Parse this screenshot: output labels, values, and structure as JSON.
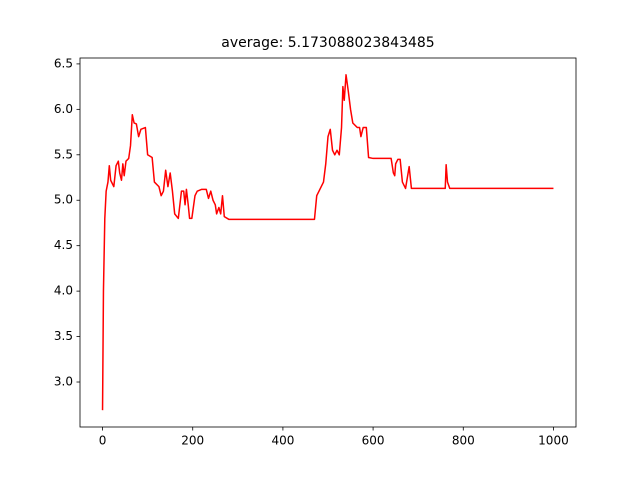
{
  "chart_data": {
    "type": "line",
    "title": "average: 5.173088023843485",
    "x": [
      0,
      2,
      5,
      8,
      12,
      15,
      18,
      25,
      30,
      35,
      38,
      42,
      45,
      48,
      52,
      58,
      62,
      66,
      70,
      75,
      80,
      85,
      95,
      100,
      110,
      115,
      125,
      130,
      135,
      140,
      145,
      150,
      155,
      160,
      168,
      175,
      180,
      183,
      186,
      190,
      193,
      198,
      205,
      210,
      220,
      230,
      235,
      240,
      245,
      250,
      253,
      258,
      262,
      266,
      270,
      280,
      470,
      475,
      480,
      490,
      495,
      500,
      505,
      510,
      515,
      520,
      525,
      530,
      533,
      536,
      540,
      545,
      550,
      555,
      565,
      570,
      573,
      578,
      585,
      590,
      600,
      640,
      645,
      648,
      650,
      655,
      660,
      665,
      672,
      676,
      680,
      685,
      760,
      762,
      765,
      770,
      1000
    ],
    "series": [
      {
        "color": "#ff0000",
        "values": [
          2.69,
          4.0,
          4.8,
          5.1,
          5.2,
          5.38,
          5.22,
          5.15,
          5.38,
          5.43,
          5.3,
          5.22,
          5.4,
          5.27,
          5.43,
          5.46,
          5.6,
          5.94,
          5.85,
          5.84,
          5.7,
          5.78,
          5.8,
          5.5,
          5.47,
          5.2,
          5.15,
          5.05,
          5.1,
          5.33,
          5.15,
          5.3,
          5.1,
          4.85,
          4.8,
          5.1,
          5.1,
          4.95,
          5.12,
          4.95,
          4.8,
          4.8,
          5.05,
          5.1,
          5.12,
          5.12,
          5.02,
          5.1,
          5.0,
          4.95,
          4.85,
          4.92,
          4.85,
          5.05,
          4.82,
          4.79,
          4.79,
          5.05,
          5.1,
          5.2,
          5.4,
          5.7,
          5.78,
          5.55,
          5.5,
          5.55,
          5.5,
          5.8,
          6.25,
          6.1,
          6.38,
          6.2,
          6.0,
          5.85,
          5.8,
          5.8,
          5.7,
          5.8,
          5.8,
          5.47,
          5.46,
          5.46,
          5.3,
          5.27,
          5.4,
          5.45,
          5.45,
          5.2,
          5.13,
          5.25,
          5.37,
          5.13,
          5.13,
          5.39,
          5.2,
          5.13,
          5.13
        ]
      }
    ],
    "xlim": [
      -50,
      1050
    ],
    "xticks": [
      0,
      200,
      400,
      600,
      800,
      1000
    ],
    "ylim": [
      2.505,
      6.565
    ],
    "yticks": [
      {
        "value": 3.0,
        "label": "3.0"
      },
      {
        "value": 3.5,
        "label": "3.5"
      },
      {
        "value": 4.0,
        "label": "4.0"
      },
      {
        "value": 4.5,
        "label": "4.5"
      },
      {
        "value": 5.0,
        "label": "5.0"
      },
      {
        "value": 5.5,
        "label": "5.5"
      },
      {
        "value": 6.0,
        "label": "6.0"
      },
      {
        "value": 6.5,
        "label": "6.5"
      }
    ]
  }
}
